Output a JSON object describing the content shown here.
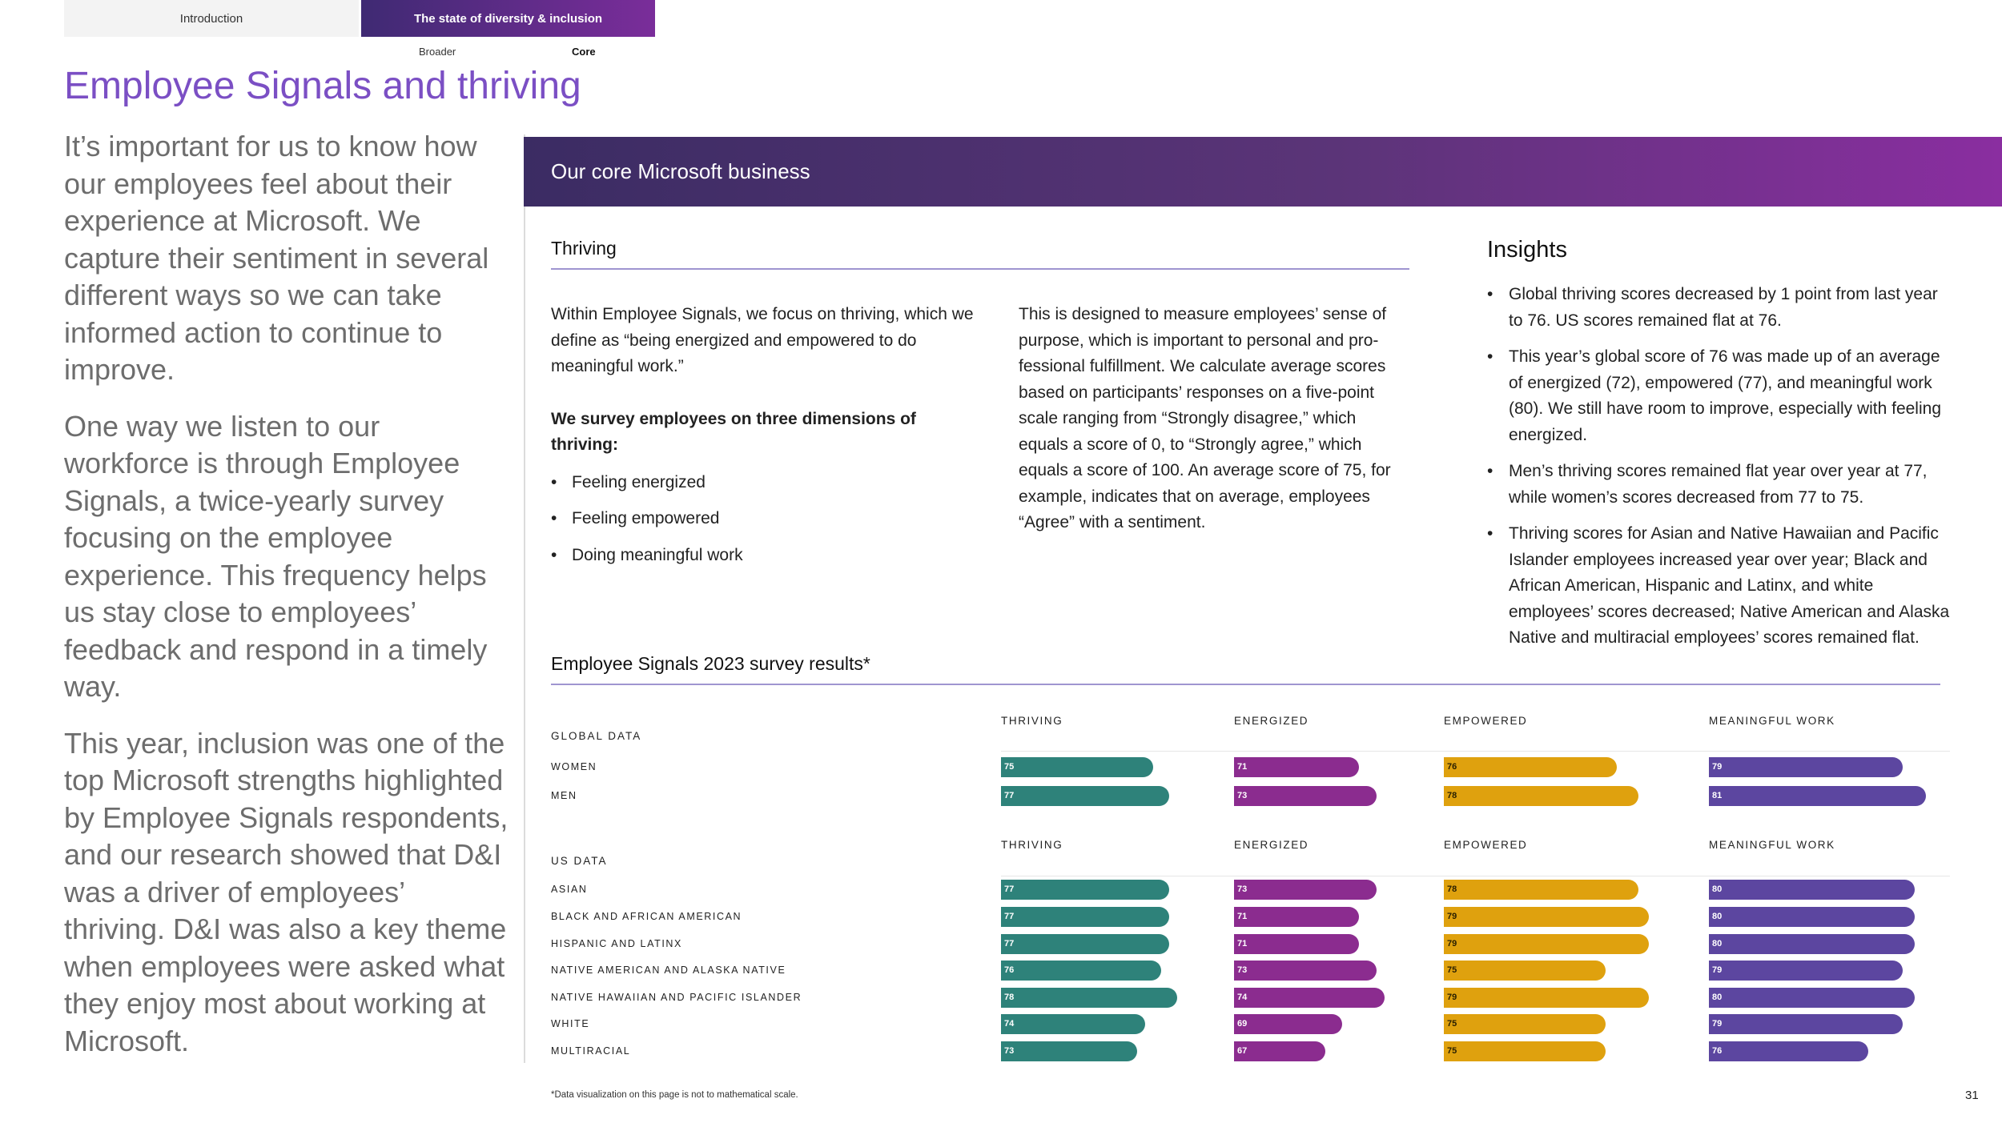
{
  "nav": {
    "tabs": [
      "Introduction",
      "The state of diversity & inclusion"
    ],
    "subtabs": [
      "Broader",
      "Core"
    ]
  },
  "page_title": "Employee Signals and thriving",
  "intro_paragraphs": [
    "It’s important for us to know how our employees feel about their experience at Microsoft. We capture their sentiment in several different ways so we can take informed action to continue to improve.",
    "One way we listen to our workforce is through Employee Signals, a twice-yearly survey focusing on the employee experience. This frequency helps us stay close to employees’ feedback and respond in a timely way.",
    "This year, inclusion was one of the top Microsoft strengths highlighted by Employee Signals respondents, and our research showed that D&I was a driver of employees’ thriving. D&I was also a key theme when employees were asked what they enjoy most about working at Microsoft."
  ],
  "banner_title": "Our core Microsoft business",
  "thriving": {
    "heading": "Thriving",
    "col1_p1": "Within Employee Signals, we focus on thriving, which we define as “being energized and empowered to do meaningful work.”",
    "col1_bold": "We survey employees on three dimensions of thriving:",
    "dimensions": [
      "Feeling energized",
      "Feeling empowered",
      "Doing meaningful work"
    ],
    "col2_p": "This is designed to measure employees’ sense of purpose, which is important to personal and pro­fessional fulfillment. We calculate average scores based on participants’ responses on a five-point scale ranging from “Strongly disagree,” which equals a score of 0, to “Strongly agree,” which equals a score of 100. An average score of 75, for example, indicates that on average, employees “Agree” with a sentiment."
  },
  "insights": {
    "heading": "Insights",
    "items": [
      "Global thriving scores decreased by 1 point from last year to 76. US scores remained flat at 76.",
      "This year’s global score of 76 was made up of an average of energized (72), empowered (77), and meaningful work (80). We still have room to improve, especially with feeling energized.",
      "Men’s thriving scores remained flat year over year at 77, while women’s scores decreased from 77 to 75.",
      "Thriving scores for Asian and Native Hawaiian and Pacific Islander employees increased year over year; Black and African American, Hispanic and Latinx, and white employees’ scores decreased; Native American and Alaska Native and multiracial employees’ scores remained flat."
    ]
  },
  "survey_heading": "Employee Signals 2023 survey results*",
  "chart_data": {
    "type": "bar",
    "orientation": "horizontal",
    "metrics": [
      "THRIVING",
      "ENERGIZED",
      "EMPOWERED",
      "MEANINGFUL WORK"
    ],
    "colors": [
      "#2e827a",
      "#8b2c8f",
      "#dfa10e",
      "#5c46a0"
    ],
    "groups": [
      {
        "name": "GLOBAL DATA",
        "rows": [
          {
            "label": "WOMEN",
            "values": [
              75,
              71,
              76,
              79
            ]
          },
          {
            "label": "MEN",
            "values": [
              77,
              73,
              78,
              81
            ]
          }
        ]
      },
      {
        "name": "US DATA",
        "rows": [
          {
            "label": "ASIAN",
            "values": [
              77,
              73,
              78,
              80
            ]
          },
          {
            "label": "BLACK AND AFRICAN AMERICAN",
            "values": [
              77,
              71,
              79,
              80
            ]
          },
          {
            "label": "HISPANIC AND LATINX",
            "values": [
              77,
              71,
              79,
              80
            ]
          },
          {
            "label": "NATIVE AMERICAN AND ALASKA NATIVE",
            "values": [
              76,
              73,
              75,
              79
            ]
          },
          {
            "label": "NATIVE HAWAIIAN AND PACIFIC ISLANDER",
            "values": [
              78,
              74,
              79,
              80
            ]
          },
          {
            "label": "WHITE",
            "values": [
              74,
              69,
              75,
              79
            ]
          },
          {
            "label": "MULTIRACIAL",
            "values": [
              73,
              67,
              75,
              76
            ]
          }
        ]
      }
    ]
  },
  "footnote": "*Data visualization on this page is not to mathematical scale.",
  "page_number": "31"
}
